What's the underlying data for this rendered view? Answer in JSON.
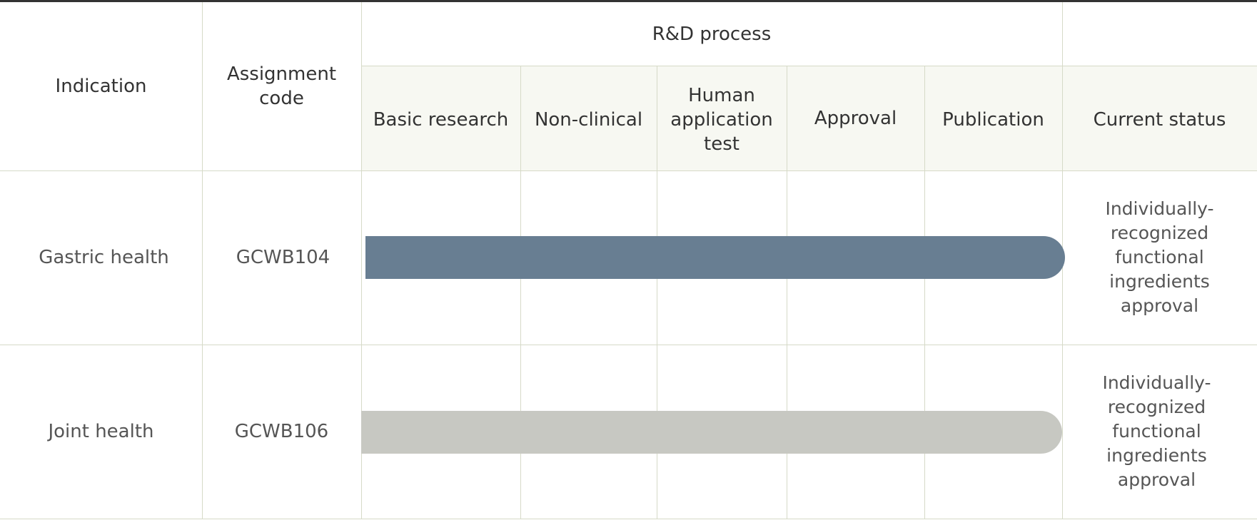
{
  "table": {
    "headers": {
      "indication": "Indication",
      "assignment_code": "Assignment\ncode",
      "rd_process": "R&D process",
      "stages": [
        "Basic research",
        "Non-clinical",
        "Human\napplication\ntest",
        "Approval",
        "Publication"
      ],
      "current_status": "Current status"
    },
    "rows": [
      {
        "indication": "Gastric health",
        "code": "GCWB104",
        "progress_stage": "Publication",
        "bar_color": "#687e92",
        "status": "Individually-\nrecognized\nfunctional\ningredients\napproval"
      },
      {
        "indication": "Joint health",
        "code": "GCWB106",
        "progress_stage": "Publication",
        "bar_color": "#c7c8c2",
        "status": "Individually-\nrecognized\nfunctional\ningredients\napproval"
      }
    ]
  },
  "colors": {
    "grid_line": "#d6dac8",
    "header_bg": "#f7f8f2",
    "top_rule": "#333333"
  }
}
